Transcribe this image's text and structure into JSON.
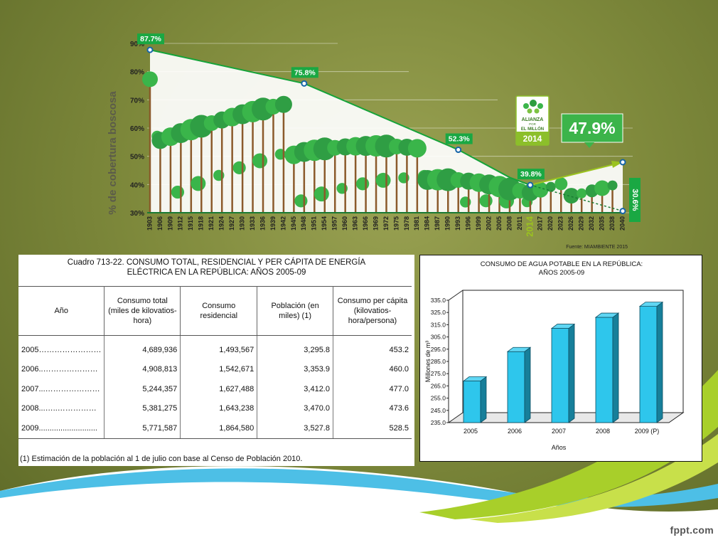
{
  "forest_chart": {
    "ylabel": "% de cobertura boscosa",
    "source": "Fuente: MIAMBIENTE 2015",
    "logo_lines": [
      "ALIANZA",
      "POR",
      "EL MILLÓN"
    ],
    "logo_year": "2014",
    "highlight_year": "2014",
    "goal_label": "47.9%",
    "projection_label": "30.6%"
  },
  "table": {
    "title_line1": "Cuadro 713-22.  CONSUMO TOTAL, RESIDENCIAL  Y  PER CÁPITA DE ENERGÍA",
    "title_line2": "ELÉCTRICA EN LA REPÚBLICA: AÑOS 2005-09",
    "headers": [
      "Año",
      "Consumo total (miles de kilovatios-hora)",
      "Consumo residencial",
      "Población (en miles) (1)",
      "Consumo per cápita (kilovatios-hora/persona)"
    ],
    "rows": [
      [
        "2005……………………",
        "4,689,936",
        "1,493,567",
        "3,295.8",
        "453.2"
      ],
      [
        "2006..…………………",
        "4,908,813",
        "1,542,671",
        "3,353.9",
        "460.0"
      ],
      [
        "2007...…………………",
        "5,244,357",
        "1,627,488",
        "3,412.0",
        "477.0"
      ],
      [
        "2008...…..……………",
        "5,381,275",
        "1,643,238",
        "3,470.0",
        "473.6"
      ],
      [
        "2009...........................",
        "5,771,587",
        "1,864,580",
        "3,527.8",
        "528.5"
      ]
    ],
    "footnote": "(1) Estimación de la población al 1 de julio con base al Censo de Población 2010."
  },
  "water_chart_title_line1": "CONSUMO DE AGUA POTABLE EN LA REPÚBLICA:",
  "water_chart_title_line2": "AÑOS 2005-09",
  "footer_brand": "fppt.com",
  "chart_data": [
    {
      "type": "line",
      "ylabel": "% de cobertura boscosa",
      "ylim": [
        30,
        90
      ],
      "yticks": [
        "30%",
        "40%",
        "50%",
        "60%",
        "70%",
        "80%",
        "90%"
      ],
      "x": [
        "1903",
        "1906",
        "1909",
        "1912",
        "1915",
        "1918",
        "1921",
        "1924",
        "1927",
        "1930",
        "1933",
        "1936",
        "1939",
        "1942",
        "1945",
        "1948",
        "1951",
        "1954",
        "1957",
        "1960",
        "1963",
        "1966",
        "1969",
        "1972",
        "1975",
        "1978",
        "1981",
        "1984",
        "1987",
        "1990",
        "1993",
        "1996",
        "1999",
        "2002",
        "2005",
        "2008",
        "2011",
        "2014",
        "2017",
        "2020",
        "2023",
        "2026",
        "2029",
        "2032",
        "2035",
        "2038",
        "2040"
      ],
      "series": [
        {
          "points": [
            {
              "x": "1903",
              "y": 87.7,
              "label": "87.7%"
            },
            {
              "x": "1948",
              "y": 75.8,
              "label": "75.8%"
            },
            {
              "x": "1993",
              "y": 52.3,
              "label": "52.3%"
            },
            {
              "x": "2008",
              "y": 42.5
            },
            {
              "x": "2014",
              "y": 39.8,
              "label": "39.8%"
            }
          ]
        },
        {
          "points": [
            {
              "x": "2014",
              "y": 39.8
            },
            {
              "x": "2040",
              "y": 47.9,
              "label": "47.9%"
            }
          ]
        },
        {
          "points": [
            {
              "x": "2014",
              "y": 39.8
            },
            {
              "x": "2040",
              "y": 30.6,
              "label": "30.6%"
            }
          ]
        }
      ],
      "colors": {
        "line": "#15a339",
        "label_bg": "#1aa843",
        "goal": "#9bc31f",
        "tree": "#3ab54a",
        "trunk": "#8b5a2b"
      }
    },
    {
      "type": "bar",
      "title": "CONSUMO DE AGUA POTABLE EN LA REPÚBLICA: AÑOS 2005-09",
      "xlabel": "Años",
      "ylabel": "Millones de m³",
      "categories": [
        "2005",
        "2006",
        "2007",
        "2008",
        "2009 (P)"
      ],
      "values": [
        269,
        293,
        312,
        321,
        330
      ],
      "ylim": [
        235,
        335
      ],
      "yticks": [
        "235.0",
        "245.0",
        "255.0",
        "265.0",
        "275.0",
        "285.0",
        "295.0",
        "305.0",
        "315.0",
        "325.0",
        "335.0"
      ],
      "grid": false,
      "colors": {
        "bar": "#2ec6ec",
        "bar_side": "#177f9a",
        "bar_top": "#5fd6f3"
      }
    }
  ]
}
